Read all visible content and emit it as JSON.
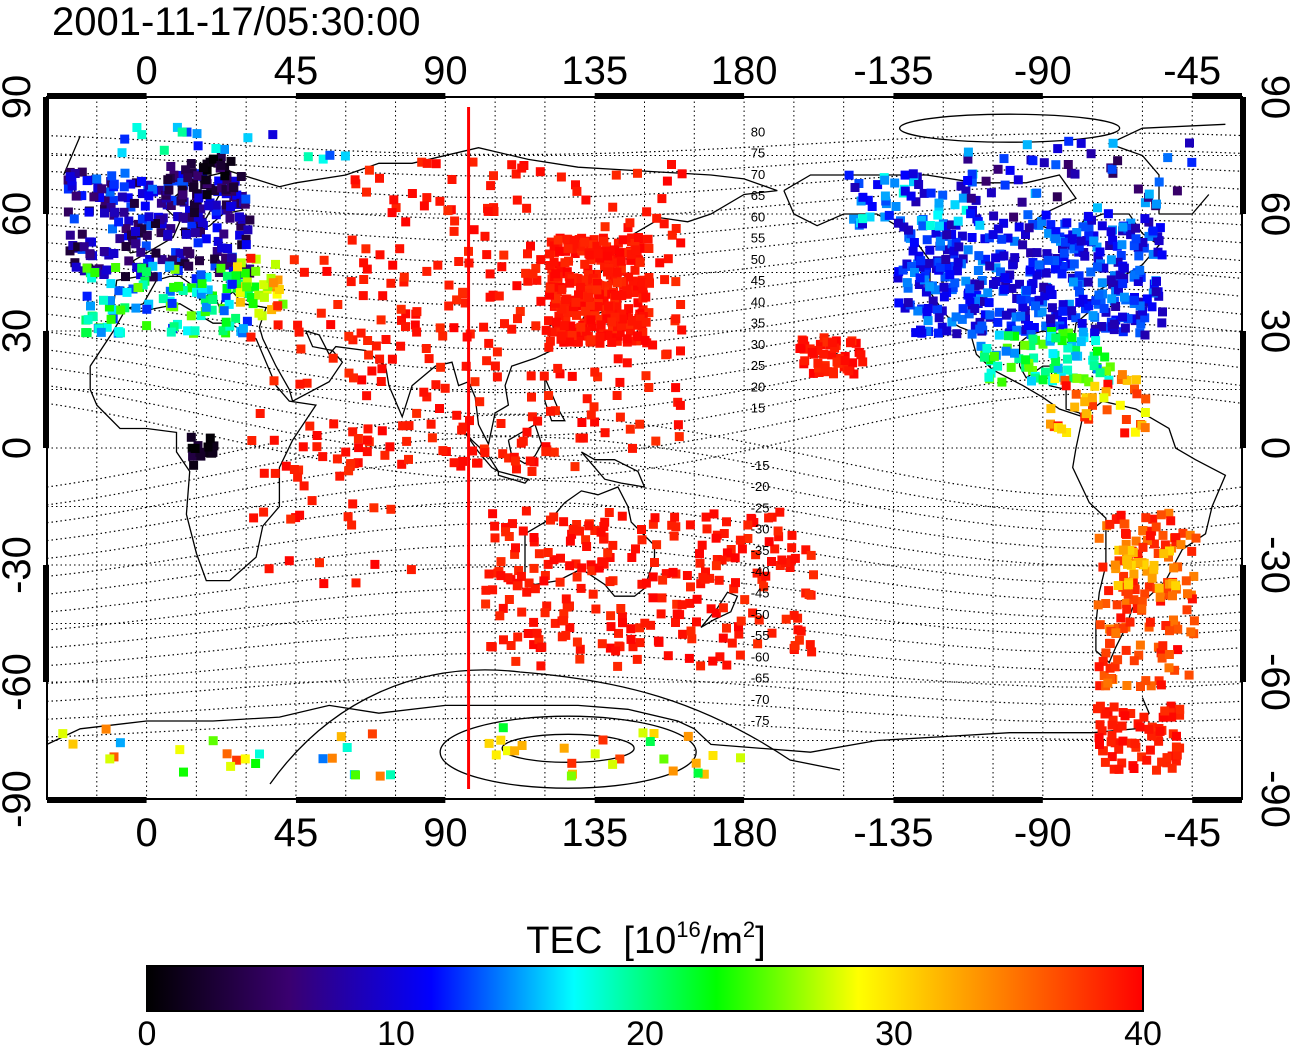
{
  "title": "2001-11-17/05:30:00",
  "map": {
    "projection": "equirectangular",
    "lon_range": [
      -30,
      330
    ],
    "lat_range": [
      -90,
      90
    ],
    "top_ticks": [
      "0",
      "45",
      "90",
      "135",
      "180",
      "-135",
      "-90",
      "-45"
    ],
    "bottom_ticks": [
      "0",
      "45",
      "90",
      "135",
      "180",
      "-135",
      "-90",
      "-45"
    ],
    "left_ticks": [
      "90",
      "60",
      "30",
      "0",
      "-30",
      "-60",
      "-90"
    ],
    "right_ticks": [
      "90",
      "60",
      "30",
      "0",
      "-30",
      "-60",
      "-90"
    ],
    "grid": "dotted, 15 degree",
    "marker_longitude": 97,
    "marker_color": "#ff0000",
    "contour_labels": [
      "80",
      "75",
      "70",
      "65",
      "60",
      "55",
      "50",
      "45",
      "40",
      "35",
      "30",
      "25",
      "20",
      "15",
      "-15",
      "-20",
      "-25",
      "-30",
      "-35",
      "-40",
      "-45",
      "-50",
      "-55",
      "-60",
      "-65",
      "-70",
      "-75"
    ]
  },
  "colorbar": {
    "title_main": "TEC",
    "title_units_pre": "[10",
    "title_exp": "16",
    "title_units_mid": "/m",
    "title_exp2": "2",
    "title_units_post": "]",
    "min": 0,
    "max": 40,
    "ticks": [
      "0",
      "10",
      "20",
      "30",
      "40"
    ],
    "colormap": [
      "#000000",
      "#3a0070",
      "#0000ff",
      "#00ffff",
      "#00ff00",
      "#ffff00",
      "#ff8000",
      "#ff0000"
    ]
  }
}
